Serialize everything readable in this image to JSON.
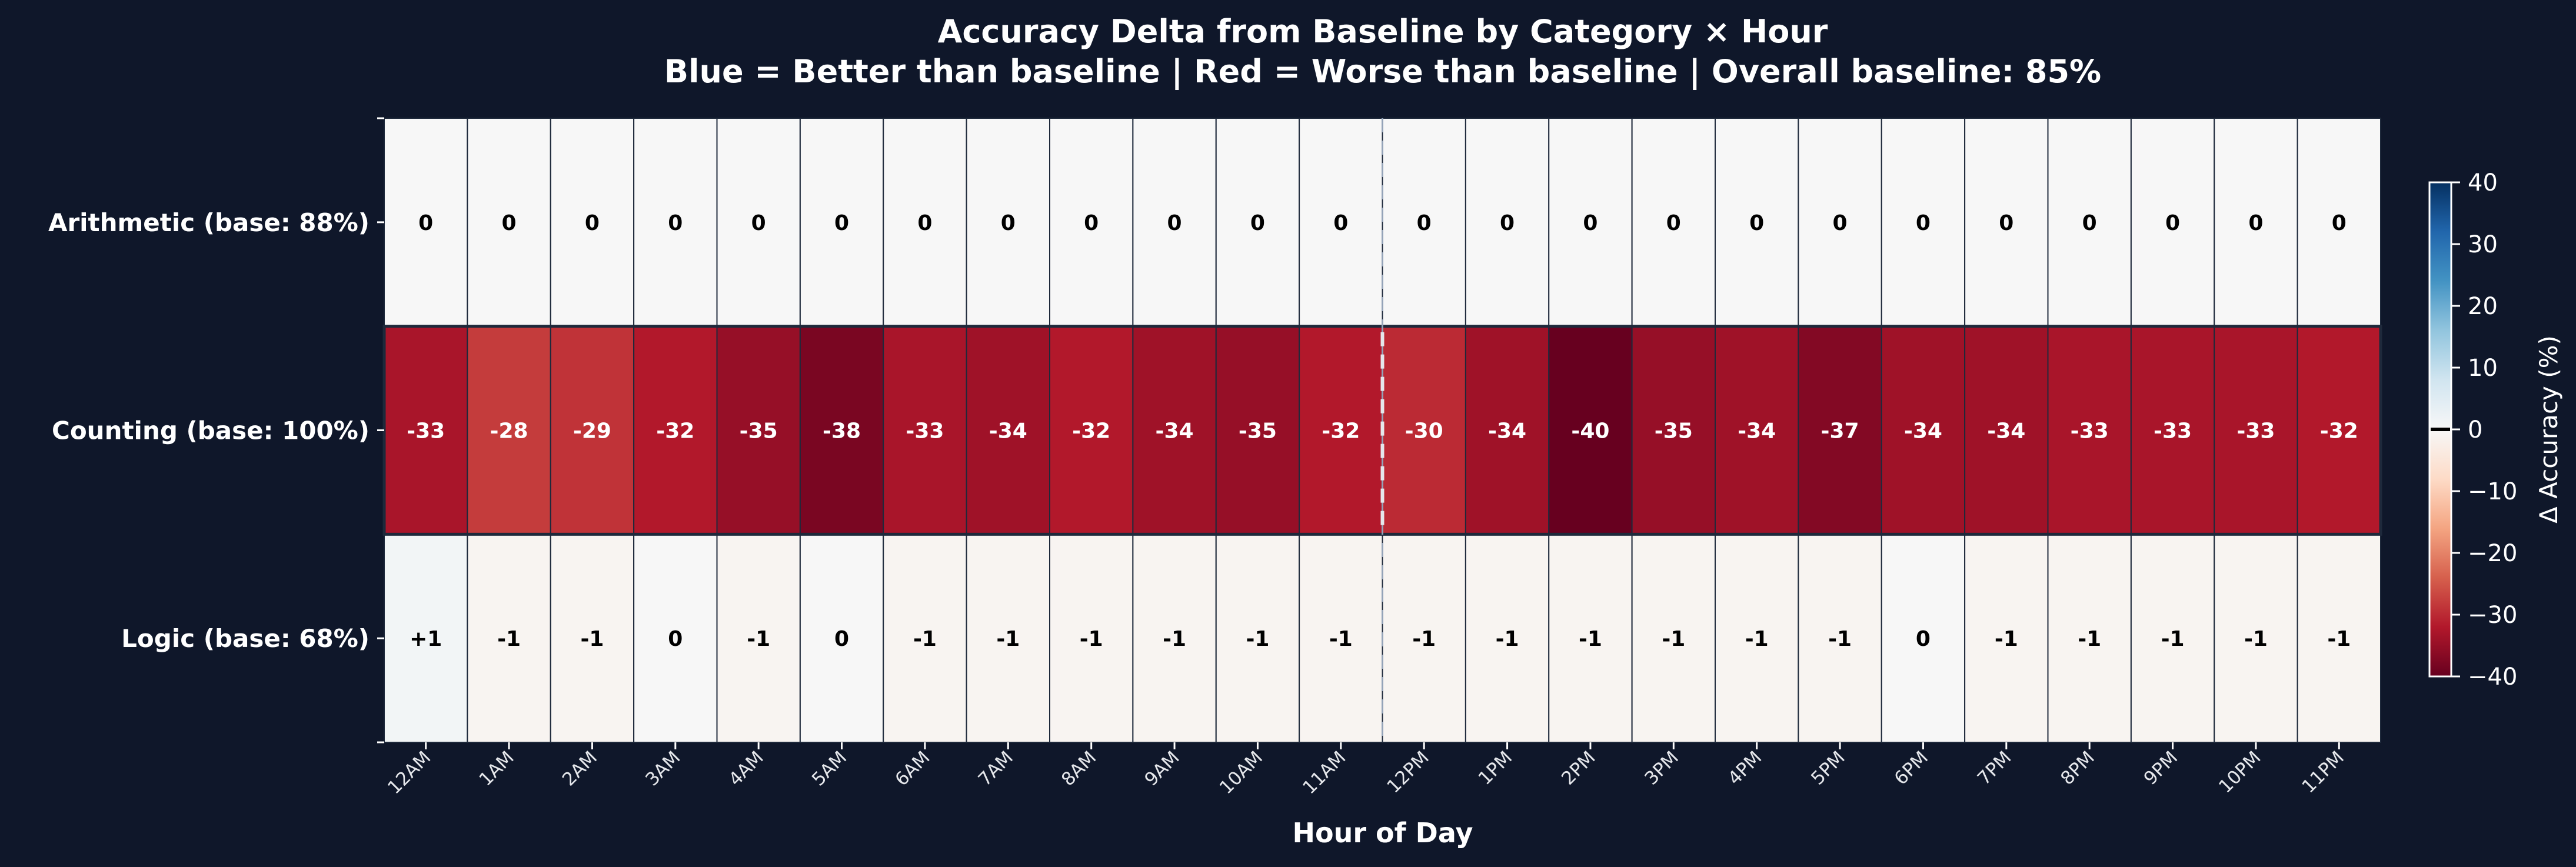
{
  "chart_data": {
    "type": "heatmap",
    "title": "Accuracy Delta from Baseline by Category × Hour",
    "subtitle": "Blue = Better than baseline | Red = Worse than baseline | Overall baseline: 85%",
    "xlabel": "Hour of Day",
    "ylabel": "",
    "x_categories": [
      "12AM",
      "1AM",
      "2AM",
      "3AM",
      "4AM",
      "5AM",
      "6AM",
      "7AM",
      "8AM",
      "9AM",
      "10AM",
      "11AM",
      "12PM",
      "1PM",
      "2PM",
      "3PM",
      "4PM",
      "5PM",
      "6PM",
      "7PM",
      "8PM",
      "9PM",
      "10PM",
      "11PM"
    ],
    "y_categories": [
      "Arithmetic (base: 88%)",
      "Counting (base: 100%)",
      "Logic (base: 68%)"
    ],
    "values": [
      [
        0,
        0,
        0,
        0,
        0,
        0,
        0,
        0,
        0,
        0,
        0,
        0,
        0,
        0,
        0,
        0,
        0,
        0,
        0,
        0,
        0,
        0,
        0,
        0
      ],
      [
        -33,
        -28,
        -29,
        -32,
        -35,
        -38,
        -33,
        -34,
        -32,
        -34,
        -35,
        -32,
        -30,
        -34,
        -40,
        -35,
        -34,
        -37,
        -34,
        -34,
        -33,
        -33,
        -33,
        -32
      ],
      [
        1,
        -1,
        -1,
        0,
        -1,
        0,
        -1,
        -1,
        -1,
        -1,
        -1,
        -1,
        -1,
        -1,
        -1,
        -1,
        -1,
        -1,
        0,
        -1,
        -1,
        -1,
        -1,
        -1
      ]
    ],
    "value_labels": [
      [
        "0",
        "0",
        "0",
        "0",
        "0",
        "0",
        "0",
        "0",
        "0",
        "0",
        "0",
        "0",
        "0",
        "0",
        "0",
        "0",
        "0",
        "0",
        "0",
        "0",
        "0",
        "0",
        "0",
        "0"
      ],
      [
        "-33",
        "-28",
        "-29",
        "-32",
        "-35",
        "-38",
        "-33",
        "-34",
        "-32",
        "-34",
        "-35",
        "-32",
        "-30",
        "-34",
        "-40",
        "-35",
        "-34",
        "-37",
        "-34",
        "-34",
        "-33",
        "-33",
        "-33",
        "-32"
      ],
      [
        "+1",
        "-1",
        "-1",
        "0",
        "-1",
        "0",
        "-1",
        "-1",
        "-1",
        "-1",
        "-1",
        "-1",
        "-1",
        "-1",
        "-1",
        "-1",
        "-1",
        "-1",
        "0",
        "-1",
        "-1",
        "-1",
        "-1",
        "-1"
      ]
    ],
    "colormap": "RdBu",
    "vmin": -40,
    "vmax": 40,
    "colorbar": {
      "label": "Δ Accuracy (%)",
      "ticks": [
        "40",
        "30",
        "20",
        "10",
        "0",
        "−10",
        "−20",
        "−30",
        "−40"
      ],
      "tick_values": [
        40,
        30,
        20,
        10,
        0,
        -10,
        -20,
        -30,
        -40
      ],
      "zero_marker": 0
    },
    "annotation": {
      "type": "dashed-vertical-line",
      "between": [
        "11AM",
        "12PM"
      ]
    },
    "background_color": "#0f172a"
  }
}
